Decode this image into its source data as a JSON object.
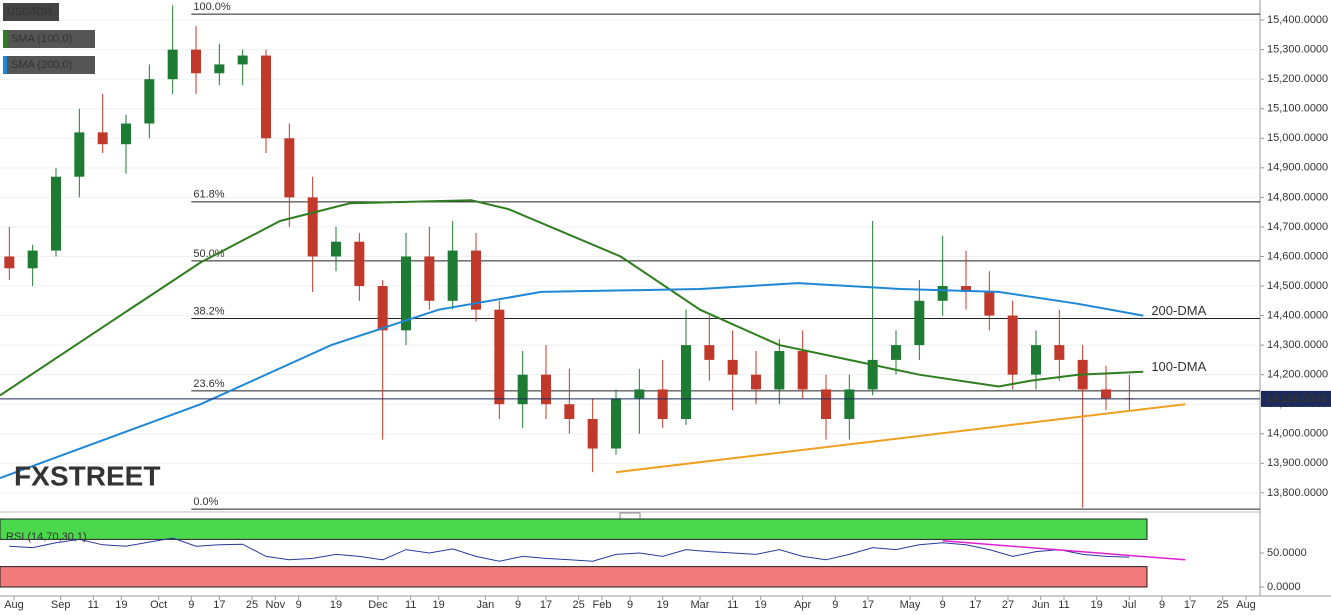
{
  "chart_data": [
    {
      "type": "candlestick",
      "title": "USD/IDR",
      "up_color": "#1e7b34",
      "down_color": "#c0392b",
      "x": [
        2,
        7,
        12,
        17,
        22,
        27,
        32,
        37,
        42,
        47,
        52,
        57,
        62,
        67,
        72,
        77,
        82,
        87,
        92,
        97,
        102,
        107,
        112,
        117,
        122,
        127,
        132,
        137,
        142,
        147,
        152,
        157,
        162,
        167,
        172,
        177,
        182,
        187,
        192,
        197,
        202,
        207,
        212,
        217,
        222,
        227,
        232,
        237,
        242
      ],
      "open": [
        14600,
        14560,
        14620,
        14870,
        15020,
        14980,
        15050,
        15200,
        15300,
        15220,
        15250,
        15280,
        15000,
        14800,
        14600,
        14650,
        14500,
        14350,
        14600,
        14450,
        14620,
        14420,
        14100,
        14200,
        14100,
        14050,
        13950,
        14120,
        14150,
        14050,
        14300,
        14250,
        14200,
        14150,
        14280,
        14150,
        14050,
        14150,
        14250,
        14300,
        14450,
        14500,
        14480,
        14400,
        14200,
        14300,
        14250,
        14150,
        14120
      ],
      "high": [
        14700,
        14640,
        14900,
        15100,
        15150,
        15080,
        15250,
        15450,
        15380,
        15320,
        15300,
        15300,
        15050,
        14870,
        14700,
        14680,
        14520,
        14680,
        14700,
        14720,
        14680,
        14450,
        14280,
        14300,
        14220,
        14120,
        14150,
        14220,
        14250,
        14420,
        14400,
        14350,
        14280,
        14320,
        14350,
        14200,
        14200,
        14720,
        14350,
        14520,
        14670,
        14620,
        14550,
        14450,
        14350,
        14420,
        14300,
        14230,
        14200
      ],
      "low": [
        14520,
        14500,
        14600,
        14800,
        14950,
        14880,
        15000,
        15150,
        15150,
        15180,
        15180,
        14950,
        14700,
        14480,
        14550,
        14450,
        13980,
        14300,
        14420,
        14420,
        14380,
        14050,
        14020,
        14050,
        14000,
        13870,
        13930,
        14000,
        14020,
        14030,
        14180,
        14080,
        14100,
        14100,
        14120,
        13980,
        13980,
        14130,
        14200,
        14250,
        14400,
        14420,
        14350,
        14150,
        14150,
        14180,
        13750,
        14080,
        14080
      ],
      "close": [
        14560,
        14620,
        14870,
        15020,
        14980,
        15050,
        15200,
        15300,
        15220,
        15250,
        15280,
        15000,
        14800,
        14600,
        14650,
        14500,
        14350,
        14600,
        14450,
        14620,
        14420,
        14100,
        14200,
        14100,
        14050,
        13950,
        14120,
        14150,
        14050,
        14300,
        14250,
        14200,
        14150,
        14280,
        14150,
        14050,
        14150,
        14250,
        14300,
        14450,
        14500,
        14480,
        14400,
        14200,
        14300,
        14250,
        14150,
        14120,
        14118
      ],
      "series": [
        {
          "name": "SMA (100,0)",
          "annotation": "100-DMA",
          "color": "#2e7d1e",
          "x": [
            0,
            21,
            43,
            60,
            75,
            101,
            109,
            133,
            150,
            167,
            182,
            197,
            214,
            221,
            231,
            245
          ],
          "values": [
            14130,
            14350,
            14580,
            14720,
            14780,
            14790,
            14760,
            14600,
            14420,
            14300,
            14250,
            14200,
            14160,
            14180,
            14200,
            14210
          ]
        },
        {
          "name": "SMA (200,0)",
          "annotation": "200-DMA",
          "color": "#1e88d6",
          "x": [
            0,
            43,
            71,
            94,
            116,
            150,
            171,
            193,
            214,
            231,
            245
          ],
          "values": [
            13850,
            14100,
            14300,
            14420,
            14480,
            14490,
            14510,
            14490,
            14480,
            14440,
            14400
          ]
        }
      ],
      "fib_start_x": 41,
      "fib_levels": [
        {
          "label": "100.0%",
          "value": 15420
        },
        {
          "label": "61.8%",
          "value": 14785
        },
        {
          "label": "50.0%",
          "value": 14585
        },
        {
          "label": "38.2%",
          "value": 14390
        },
        {
          "label": "23.6%",
          "value": 14145
        },
        {
          "label": "0.0%",
          "value": 13745
        }
      ],
      "trendline": {
        "color": "#f0a020",
        "x": [
          132,
          254
        ],
        "values": [
          13870,
          14100
        ]
      },
      "last_price": {
        "value": 14118,
        "label": "14,118.0000"
      },
      "brand": [
        "FX",
        "STREET"
      ],
      "xlim": [
        0,
        270
      ],
      "ylim": [
        13742,
        15468
      ],
      "grid": true,
      "yticks": [
        {
          "value": 13800,
          "label": "13,800.0000"
        },
        {
          "value": 13900,
          "label": "13,900.0000"
        },
        {
          "value": 14000,
          "label": "14,000.0000"
        },
        {
          "value": 14100,
          "label": "14,100.0000"
        },
        {
          "value": 14200,
          "label": "14,200.0000"
        },
        {
          "value": 14300,
          "label": "14,300.0000"
        },
        {
          "value": 14400,
          "label": "14,400.0000"
        },
        {
          "value": 14500,
          "label": "14,500.0000"
        },
        {
          "value": 14600,
          "label": "14,600.0000"
        },
        {
          "value": 14700,
          "label": "14,700.0000"
        },
        {
          "value": 14800,
          "label": "14,800.0000"
        },
        {
          "value": 14900,
          "label": "14,900.0000"
        },
        {
          "value": 15000,
          "label": "15,000.0000"
        },
        {
          "value": 15100,
          "label": "15,100.0000"
        },
        {
          "value": 15200,
          "label": "15,200.0000"
        },
        {
          "value": 15300,
          "label": "15,300.0000"
        },
        {
          "value": 15400,
          "label": "15,400.0000"
        }
      ]
    },
    {
      "type": "rsi",
      "title": "RSI (14,70,30,1)",
      "color": "#2a3a9a",
      "upper_band": 70,
      "lower_band": 30,
      "upper_color": "#4cd84c",
      "lower_color": "#f27a7a",
      "x": [
        2,
        7,
        12,
        17,
        22,
        27,
        32,
        37,
        42,
        47,
        52,
        57,
        62,
        67,
        72,
        77,
        82,
        87,
        92,
        97,
        102,
        107,
        112,
        117,
        122,
        127,
        132,
        137,
        142,
        147,
        152,
        157,
        162,
        167,
        172,
        177,
        182,
        187,
        192,
        197,
        202,
        207,
        212,
        217,
        222,
        227,
        232,
        237,
        242
      ],
      "values": [
        60,
        58,
        65,
        70,
        62,
        60,
        66,
        72,
        60,
        62,
        63,
        45,
        40,
        42,
        48,
        45,
        40,
        55,
        50,
        56,
        45,
        38,
        45,
        42,
        40,
        38,
        48,
        50,
        45,
        55,
        52,
        50,
        48,
        55,
        45,
        40,
        48,
        58,
        55,
        62,
        65,
        62,
        55,
        45,
        52,
        55,
        48,
        45,
        44
      ],
      "trendline": {
        "color": "#e020d0",
        "x": [
          202,
          254
        ],
        "values": [
          68,
          40
        ]
      },
      "xlim": [
        0,
        270
      ],
      "ylim": [
        0,
        100
      ],
      "yticks": [
        {
          "value": 0,
          "label": "0.0000"
        },
        {
          "value": 50,
          "label": "50.0000"
        }
      ],
      "xticks": [
        {
          "value": 3,
          "label": "Aug"
        },
        {
          "value": 13,
          "label": "Sep"
        },
        {
          "value": 20,
          "label": "11"
        },
        {
          "value": 26,
          "label": "19"
        },
        {
          "value": 34,
          "label": "Oct"
        },
        {
          "value": 41,
          "label": "9"
        },
        {
          "value": 47,
          "label": "17"
        },
        {
          "value": 54,
          "label": "25"
        },
        {
          "value": 59,
          "label": "Nov"
        },
        {
          "value": 64,
          "label": "9"
        },
        {
          "value": 72,
          "label": "19"
        },
        {
          "value": 81,
          "label": "Dec"
        },
        {
          "value": 88,
          "label": "11"
        },
        {
          "value": 94,
          "label": "19"
        },
        {
          "value": 104,
          "label": "Jan"
        },
        {
          "value": 111,
          "label": "9"
        },
        {
          "value": 117,
          "label": "17"
        },
        {
          "value": 124,
          "label": "25"
        },
        {
          "value": 129,
          "label": "Feb"
        },
        {
          "value": 135,
          "label": "9"
        },
        {
          "value": 142,
          "label": "19"
        },
        {
          "value": 150,
          "label": "Mar"
        },
        {
          "value": 157,
          "label": "11"
        },
        {
          "value": 163,
          "label": "19"
        },
        {
          "value": 172,
          "label": "Apr"
        },
        {
          "value": 179,
          "label": "9"
        },
        {
          "value": 186,
          "label": "17"
        },
        {
          "value": 195,
          "label": "May"
        },
        {
          "value": 202,
          "label": "9"
        },
        {
          "value": 209,
          "label": "17"
        },
        {
          "value": 216,
          "label": "27"
        },
        {
          "value": 223,
          "label": "Jun"
        },
        {
          "value": 228,
          "label": "11"
        },
        {
          "value": 235,
          "label": "19"
        },
        {
          "value": 242,
          "label": "Jul"
        },
        {
          "value": 249,
          "label": "9"
        },
        {
          "value": 255,
          "label": "17"
        },
        {
          "value": 262,
          "label": "25"
        },
        {
          "value": 267,
          "label": "Aug"
        }
      ]
    }
  ]
}
